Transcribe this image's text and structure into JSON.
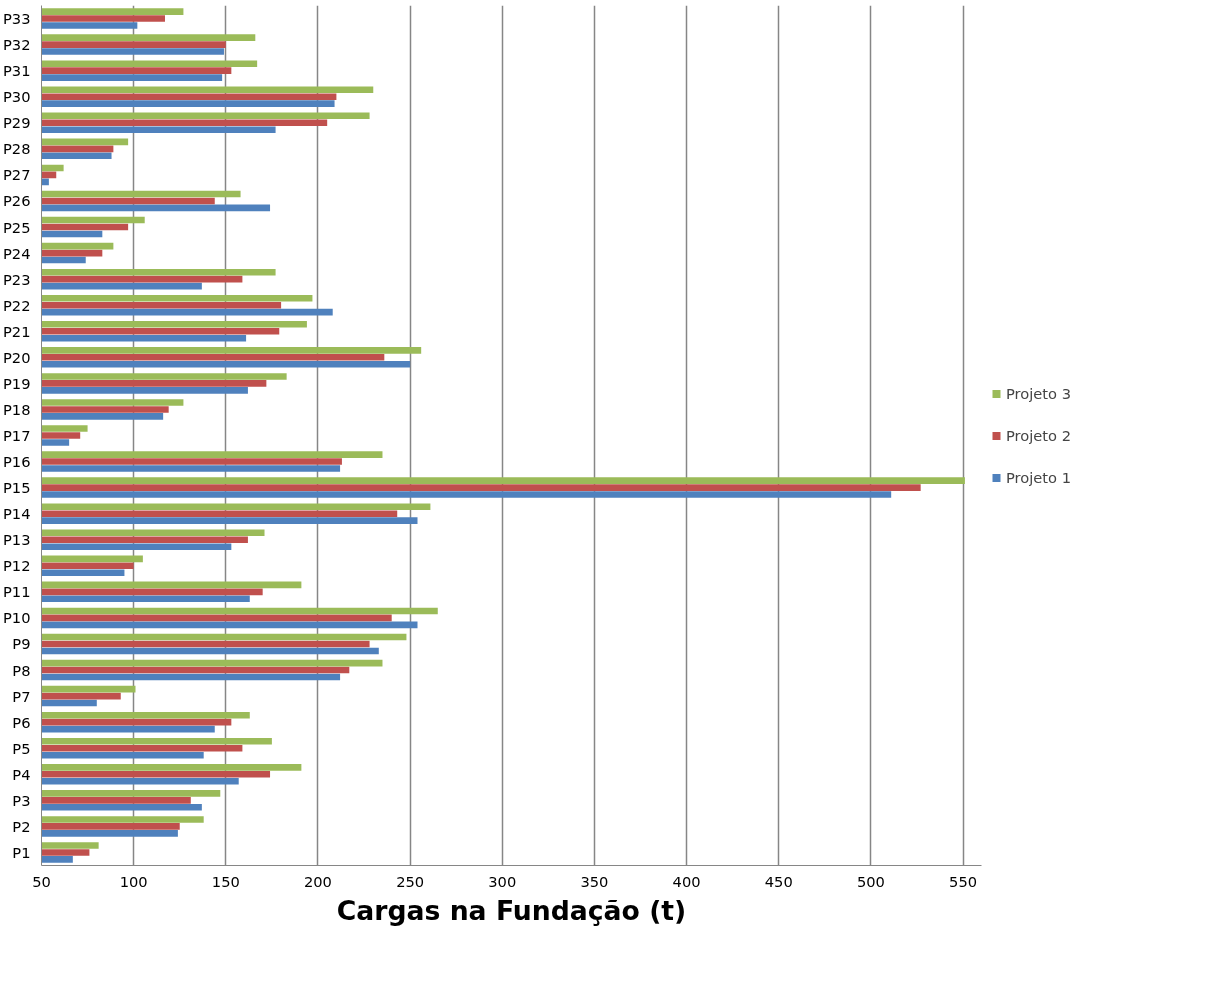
{
  "chart_data": {
    "type": "bar",
    "orientation": "horizontal",
    "xlabel": "Cargas na Fundação (t)",
    "categories": [
      "P33",
      "P32",
      "P31",
      "P30",
      "P29",
      "P28",
      "P27",
      "P26",
      "P25",
      "P24",
      "P23",
      "P22",
      "P21",
      "P20",
      "P19",
      "P18",
      "P17",
      "P16",
      "P15",
      "P14",
      "P13",
      "P12",
      "P11",
      "P10",
      "P9",
      "P8",
      "P7",
      "P6",
      "P5",
      "P4",
      "P3",
      "P2",
      "P1"
    ],
    "series": [
      {
        "name": "Projeto 1",
        "color": "#4f81bd",
        "values": [
          102,
          149,
          148,
          209,
          177,
          88,
          54,
          174,
          83,
          74,
          137,
          208,
          161,
          250,
          162,
          116,
          65,
          212,
          511,
          254,
          153,
          95,
          163,
          254,
          233,
          212,
          80,
          144,
          138,
          157,
          137,
          124,
          67
        ]
      },
      {
        "name": "Projeto 2",
        "color": "#c0504d",
        "values": [
          117,
          150,
          153,
          210,
          205,
          89,
          58,
          144,
          97,
          83,
          159,
          180,
          179,
          236,
          172,
          119,
          71,
          213,
          527,
          243,
          162,
          100,
          170,
          240,
          228,
          217,
          93,
          153,
          159,
          174,
          131,
          125,
          76
        ]
      },
      {
        "name": "Projeto 3",
        "color": "#9bbb59",
        "values": [
          127,
          166,
          167,
          230,
          228,
          97,
          62,
          158,
          106,
          89,
          177,
          197,
          194,
          256,
          183,
          127,
          75,
          235,
          551,
          261,
          171,
          105,
          191,
          265,
          248,
          235,
          101,
          163,
          175,
          191,
          147,
          138,
          81
        ]
      }
    ],
    "xlim": [
      50,
      560
    ],
    "xticks": [
      50,
      100,
      150,
      200,
      250,
      300,
      350,
      400,
      450,
      500,
      550
    ],
    "grid": "x",
    "legend": "right"
  }
}
